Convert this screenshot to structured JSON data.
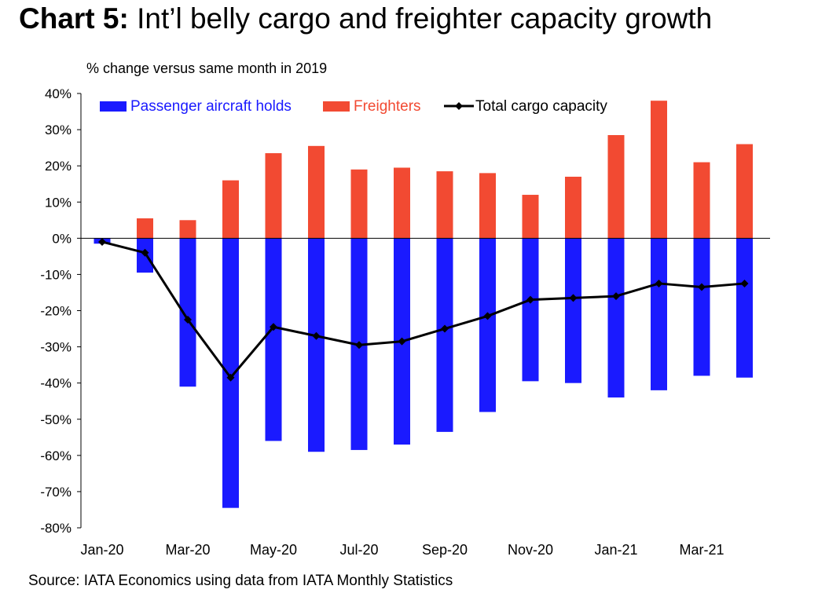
{
  "title_bold": "Chart 5:",
  "title_rest": " Int’l belly cargo and freighter capacity growth",
  "source": "Source: IATA Economics using data from IATA Monthly Statistics",
  "colors": {
    "passenger": "#1a1aff",
    "freighter": "#f24a32",
    "total": "#000000",
    "axis": "#000000"
  },
  "chart_data": {
    "type": "bar",
    "ylabel": "% change versus same month in 2019",
    "ylim": [
      -80,
      40
    ],
    "yticks": [
      40,
      30,
      20,
      10,
      0,
      -10,
      -20,
      -30,
      -40,
      -50,
      -60,
      -70,
      -80
    ],
    "ytick_labels": [
      "40%",
      "30%",
      "20%",
      "10%",
      "0%",
      "-10%",
      "-20%",
      "-30%",
      "-40%",
      "-50%",
      "-60%",
      "-70%",
      "-80%"
    ],
    "categories": [
      "Jan-20",
      "Feb-20",
      "Mar-20",
      "Apr-20",
      "May-20",
      "Jun-20",
      "Jul-20",
      "Aug-20",
      "Sep-20",
      "Oct-20",
      "Nov-20",
      "Dec-20",
      "Jan-21",
      "Feb-21",
      "Mar-21",
      "Apr-21"
    ],
    "xtick_labels": [
      "Jan-20",
      "",
      "Mar-20",
      "",
      "May-20",
      "",
      "Jul-20",
      "",
      "Sep-20",
      "",
      "Nov-20",
      "",
      "Jan-21",
      "",
      "Mar-21",
      ""
    ],
    "legend_position": "top",
    "series": [
      {
        "name": "Passenger aircraft holds",
        "kind": "bar",
        "values": [
          -1.5,
          -9.5,
          -41,
          -74.5,
          -56,
          -59,
          -58.5,
          -57,
          -53.5,
          -48,
          -39.5,
          -40,
          -44,
          -42,
          -38,
          -38.5
        ]
      },
      {
        "name": "Freighters",
        "kind": "bar",
        "values": [
          0,
          5.5,
          5,
          16,
          23.5,
          25.5,
          19,
          19.5,
          18.5,
          18,
          12,
          17,
          28.5,
          38,
          21,
          26
        ]
      },
      {
        "name": "Total cargo capacity",
        "kind": "line",
        "values": [
          -1,
          -4,
          -22.5,
          -38.5,
          -24.5,
          -27,
          -29.5,
          -28.5,
          -25,
          -21.5,
          -17,
          -16.5,
          -16,
          -12.5,
          -13.5,
          -12.5
        ]
      }
    ]
  }
}
